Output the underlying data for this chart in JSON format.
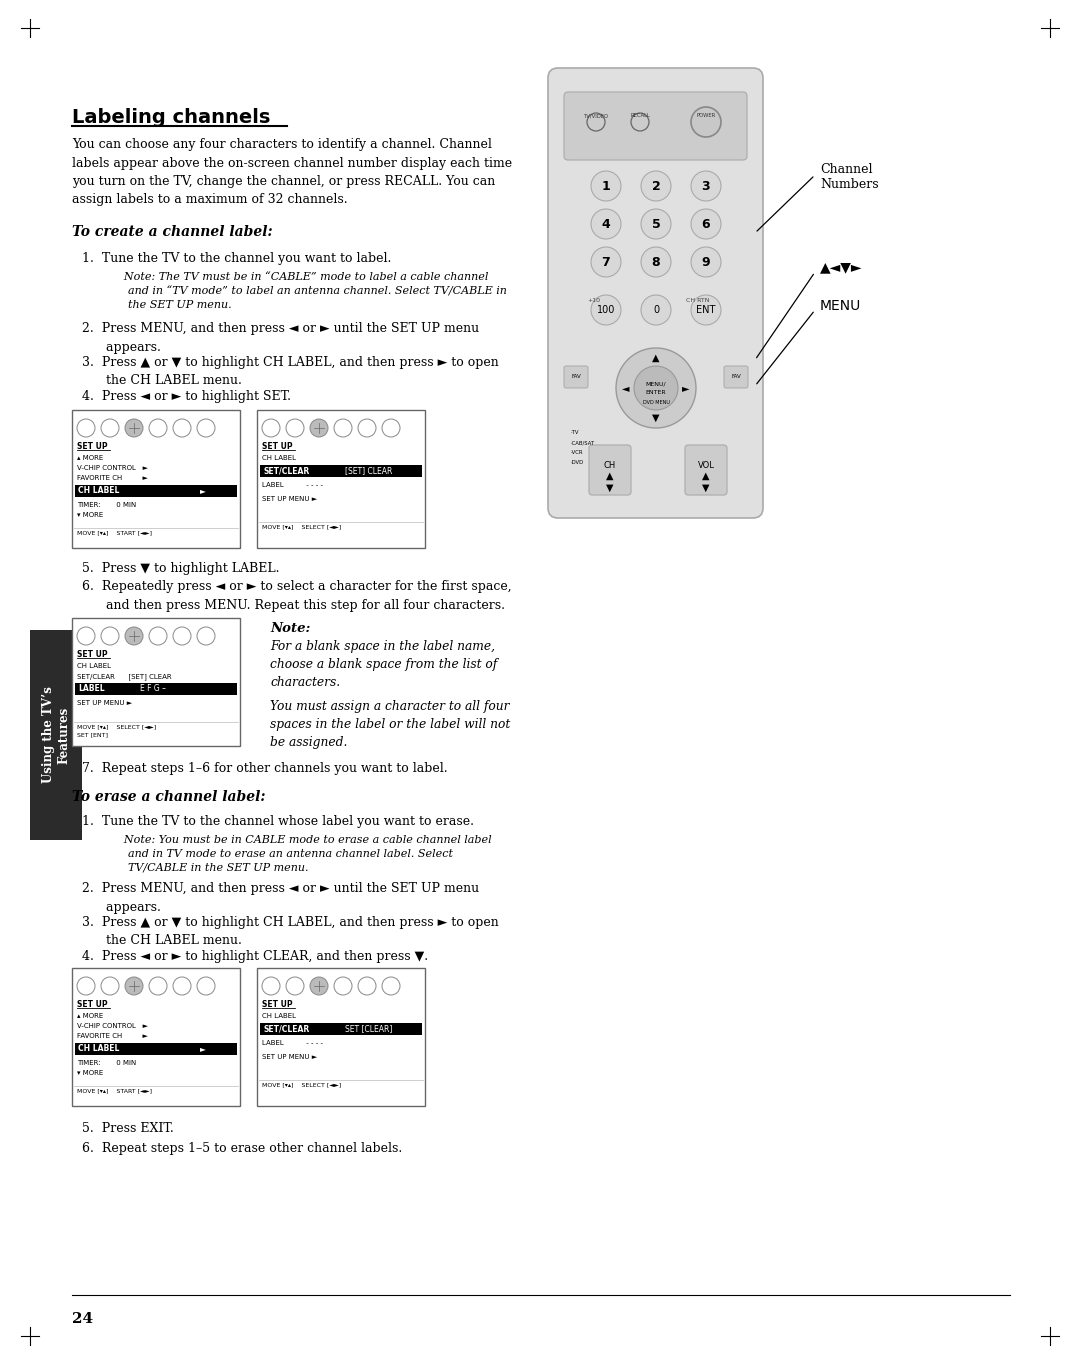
{
  "page_bg": "#ffffff",
  "page_number": "24",
  "title": "Labeling channels",
  "intro_text": "You can choose any four characters to identify a channel. Channel\nlabels appear above the on-screen channel number display each time\nyou turn on the TV, change the channel, or press RECALL. You can\nassign labels to a maximum of 32 channels.",
  "section1_title": "To create a channel label:",
  "section2_title": "To erase a channel label:",
  "sidebar_text": "Using the TV’s\nFeatures",
  "channel_numbers_label": "Channel\nNumbers",
  "menu_label": "MENU",
  "avd_label": "▲◄▼►"
}
